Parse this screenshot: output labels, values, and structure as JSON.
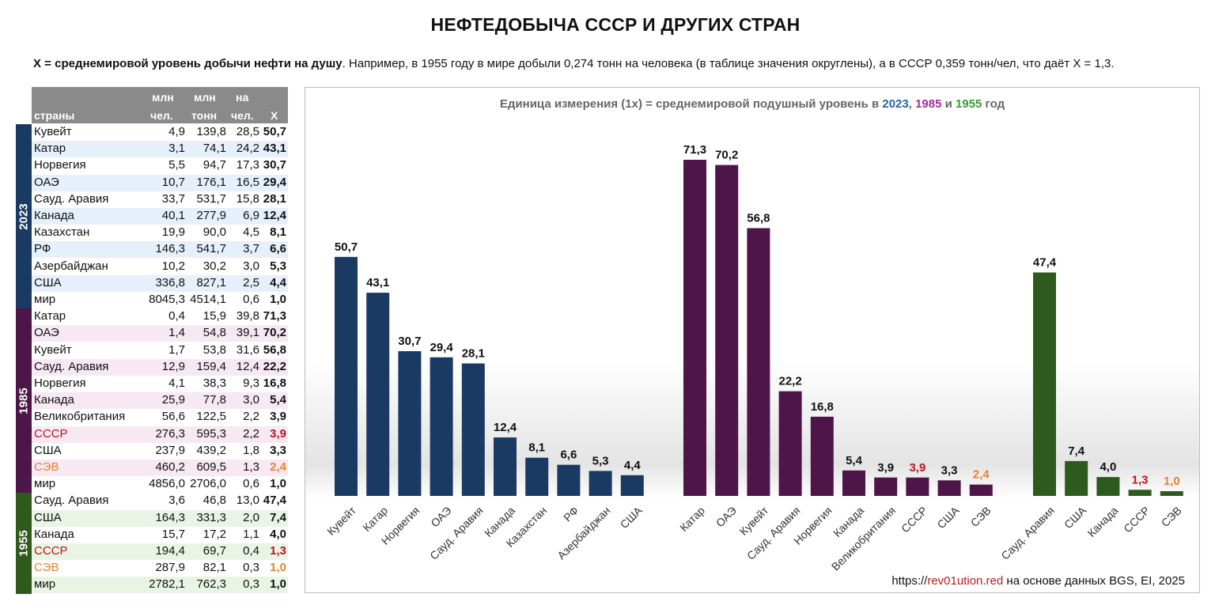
{
  "title": "НЕФТЕДОБЫЧА СССР И ДРУГИХ СТРАН",
  "note": {
    "bold": "X = среднемировой уровень добычи нефти на душу",
    "rest": ". Например, в 1955 году в мире добыли 0,274 тонн на человека (в таблице значения округлены), а в СССР 0,359 тонн/чел, что даёт X = 1,3."
  },
  "table": {
    "headers": {
      "country": "страны",
      "pop_top": "млн",
      "pop_bottom": "чел.",
      "ton_top": "млн",
      "ton_bottom": "тонн",
      "per_top": "на",
      "per_bottom": "чел.",
      "x": "X"
    },
    "groups": [
      {
        "label": "2023",
        "color": "#1a3a63",
        "tint": "#e6f0fa",
        "rows": [
          {
            "name": "Кувейт",
            "pop": "4,9",
            "ton": "139,8",
            "per": "28,5",
            "x": "50,7"
          },
          {
            "name": "Катар",
            "pop": "3,1",
            "ton": "74,1",
            "per": "24,2",
            "x": "43,1"
          },
          {
            "name": "Норвегия",
            "pop": "5,5",
            "ton": "94,7",
            "per": "17,3",
            "x": "30,7"
          },
          {
            "name": "ОАЭ",
            "pop": "10,7",
            "ton": "176,1",
            "per": "16,5",
            "x": "29,4"
          },
          {
            "name": "Сауд. Аравия",
            "pop": "33,7",
            "ton": "531,7",
            "per": "15,8",
            "x": "28,1"
          },
          {
            "name": "Канада",
            "pop": "40,1",
            "ton": "277,9",
            "per": "6,9",
            "x": "12,4"
          },
          {
            "name": "Казахстан",
            "pop": "19,9",
            "ton": "90,0",
            "per": "4,5",
            "x": "8,1"
          },
          {
            "name": "РФ",
            "pop": "146,3",
            "ton": "541,7",
            "per": "3,7",
            "x": "6,6"
          },
          {
            "name": "Азербайджан",
            "pop": "10,2",
            "ton": "30,2",
            "per": "3,0",
            "x": "5,3"
          },
          {
            "name": "США",
            "pop": "336,8",
            "ton": "827,1",
            "per": "2,5",
            "x": "4,4"
          },
          {
            "name": "мир",
            "pop": "8045,3",
            "ton": "4514,1",
            "per": "0,6",
            "x": "1,0"
          }
        ]
      },
      {
        "label": "1985",
        "color": "#4d1548",
        "tint": "#f7e8f4",
        "rows": [
          {
            "name": "Катар",
            "pop": "0,4",
            "ton": "15,9",
            "per": "39,8",
            "x": "71,3"
          },
          {
            "name": "ОАЭ",
            "pop": "1,4",
            "ton": "54,8",
            "per": "39,1",
            "x": "70,2"
          },
          {
            "name": "Кувейт",
            "pop": "1,7",
            "ton": "53,8",
            "per": "31,6",
            "x": "56,8"
          },
          {
            "name": "Сауд. Аравия",
            "pop": "12,9",
            "ton": "159,4",
            "per": "12,4",
            "x": "22,2"
          },
          {
            "name": "Норвегия",
            "pop": "4,1",
            "ton": "38,3",
            "per": "9,3",
            "x": "16,8"
          },
          {
            "name": "Канада",
            "pop": "25,9",
            "ton": "77,8",
            "per": "3,0",
            "x": "5,4"
          },
          {
            "name": "Великобритания",
            "pop": "56,6",
            "ton": "122,5",
            "per": "2,2",
            "x": "3,9"
          },
          {
            "name": "СССР",
            "pop": "276,3",
            "ton": "595,3",
            "per": "2,2",
            "x": "3,9",
            "hl": "#c0141e"
          },
          {
            "name": "США",
            "pop": "237,9",
            "ton": "439,2",
            "per": "1,8",
            "x": "3,3"
          },
          {
            "name": "СЭВ",
            "pop": "460,2",
            "ton": "609,5",
            "per": "1,3",
            "x": "2,4",
            "hl": "#e8822e"
          },
          {
            "name": "мир",
            "pop": "4856,0",
            "ton": "2706,0",
            "per": "0,6",
            "x": "1,0"
          }
        ]
      },
      {
        "label": "1955",
        "color": "#2e5a1e",
        "tint": "#eaf4e4",
        "rows": [
          {
            "name": "Сауд. Аравия",
            "pop": "3,6",
            "ton": "46,8",
            "per": "13,0",
            "x": "47,4"
          },
          {
            "name": "США",
            "pop": "164,3",
            "ton": "331,3",
            "per": "2,0",
            "x": "7,4"
          },
          {
            "name": "Канада",
            "pop": "15,7",
            "ton": "17,2",
            "per": "1,1",
            "x": "4,0"
          },
          {
            "name": "СССР",
            "pop": "194,4",
            "ton": "69,7",
            "per": "0,4",
            "x": "1,3",
            "hl": "#c0141e"
          },
          {
            "name": "СЭВ",
            "pop": "287,9",
            "ton": "82,1",
            "per": "0,3",
            "x": "1,0",
            "hl": "#e8822e"
          },
          {
            "name": "мир",
            "pop": "2782,1",
            "ton": "762,3",
            "per": "0,3",
            "x": "1,0"
          }
        ]
      }
    ]
  },
  "chart_data": {
    "type": "bar",
    "title_parts": [
      {
        "text": "Единица измерения (1x) = среднемировой подушный уровень в ",
        "color": "#666666"
      },
      {
        "text": "2023",
        "color": "#2563a8"
      },
      {
        "text": ", ",
        "color": "#666666"
      },
      {
        "text": "1985",
        "color": "#a12f9a"
      },
      {
        "text": " и ",
        "color": "#666666"
      },
      {
        "text": "1955",
        "color": "#3d9b35"
      },
      {
        "text": " год",
        "color": "#666666"
      }
    ],
    "ylim": [
      0,
      75
    ],
    "grid": false,
    "groups": [
      {
        "year": "2023",
        "color": "#1a3a63",
        "categories": [
          "Кувейт",
          "Катар",
          "Норвегия",
          "ОАЭ",
          "Сауд. Аравия",
          "Канада",
          "Казахстан",
          "РФ",
          "Азербайджан",
          "США"
        ],
        "values": [
          50.7,
          43.1,
          30.7,
          29.4,
          28.1,
          12.4,
          8.1,
          6.6,
          5.3,
          4.4
        ],
        "labels": [
          "50,7",
          "43,1",
          "30,7",
          "29,4",
          "28,1",
          "12,4",
          "8,1",
          "6,6",
          "5,3",
          "4,4"
        ],
        "label_colors": [
          "#111",
          "#111",
          "#111",
          "#111",
          "#111",
          "#111",
          "#111",
          "#111",
          "#111",
          "#111"
        ]
      },
      {
        "year": "1985",
        "color": "#4d1548",
        "categories": [
          "Катар",
          "ОАЭ",
          "Кувейт",
          "Сауд. Аравия",
          "Норвегия",
          "Канада",
          "Великобритания",
          "СССР",
          "США",
          "СЭВ"
        ],
        "values": [
          71.3,
          70.2,
          56.8,
          22.2,
          16.8,
          5.4,
          3.9,
          3.9,
          3.3,
          2.4
        ],
        "labels": [
          "71,3",
          "70,2",
          "56,8",
          "22,2",
          "16,8",
          "5,4",
          "3,9",
          "3,9",
          "3,3",
          "2,4"
        ],
        "label_colors": [
          "#111",
          "#111",
          "#111",
          "#111",
          "#111",
          "#111",
          "#111",
          "#c0141e",
          "#111",
          "#e8822e"
        ]
      },
      {
        "year": "1955",
        "color": "#2e5a1e",
        "categories": [
          "Сауд. Аравия",
          "США",
          "Канада",
          "СССР",
          "СЭВ"
        ],
        "values": [
          47.4,
          7.4,
          4.0,
          1.3,
          1.0
        ],
        "labels": [
          "47,4",
          "7,4",
          "4,0",
          "1,3",
          "1,0"
        ],
        "label_colors": [
          "#111",
          "#111",
          "#111",
          "#c0141e",
          "#e8822e"
        ]
      }
    ]
  },
  "credit": {
    "prefix": "https://",
    "link": "rev01ution.red",
    "suffix": " на основе данных BGS, EI, 2025"
  }
}
